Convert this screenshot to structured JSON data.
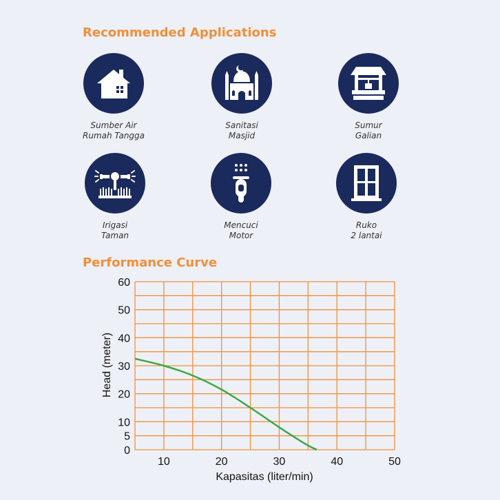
{
  "applications": {
    "title": "Recommended Applications",
    "items": [
      {
        "line1": "Sumber Air",
        "line2": "Rumah Tangga",
        "icon": "house-icon"
      },
      {
        "line1": "Sanitasi",
        "line2": "Masjid",
        "icon": "mosque-icon"
      },
      {
        "line1": "Sumur",
        "line2": "Galian",
        "icon": "well-icon"
      },
      {
        "line1": "Irigasi",
        "line2": "Taman",
        "icon": "sprinkler-icon"
      },
      {
        "line1": "Mencuci",
        "line2": "Motor",
        "icon": "scooter-wash-icon"
      },
      {
        "line1": "Ruko",
        "line2": "2 lantai",
        "icon": "window-building-icon"
      }
    ]
  },
  "performance": {
    "title": "Performance Curve"
  },
  "colors": {
    "accent": "#f08f3a",
    "icon_bg": "#1a2a5c",
    "grid": "#f08f3a",
    "curve": "#3aa845"
  },
  "chart_data": {
    "type": "line",
    "title": "Performance Curve",
    "xlabel": "Kapasitas (liter/min)",
    "ylabel": "Head (meter)",
    "xlim": [
      5,
      50
    ],
    "ylim": [
      0,
      60
    ],
    "x_ticks": [
      10,
      20,
      30,
      40,
      50
    ],
    "y_ticks": [
      0,
      5,
      10,
      20,
      30,
      40,
      50,
      60
    ],
    "grid": true,
    "series": [
      {
        "x": [
          5,
          10,
          15,
          20,
          25,
          30,
          33,
          35,
          36.5
        ],
        "y": [
          32.5,
          30,
          26.5,
          21.5,
          15,
          8,
          4,
          1.5,
          0
        ]
      }
    ]
  }
}
